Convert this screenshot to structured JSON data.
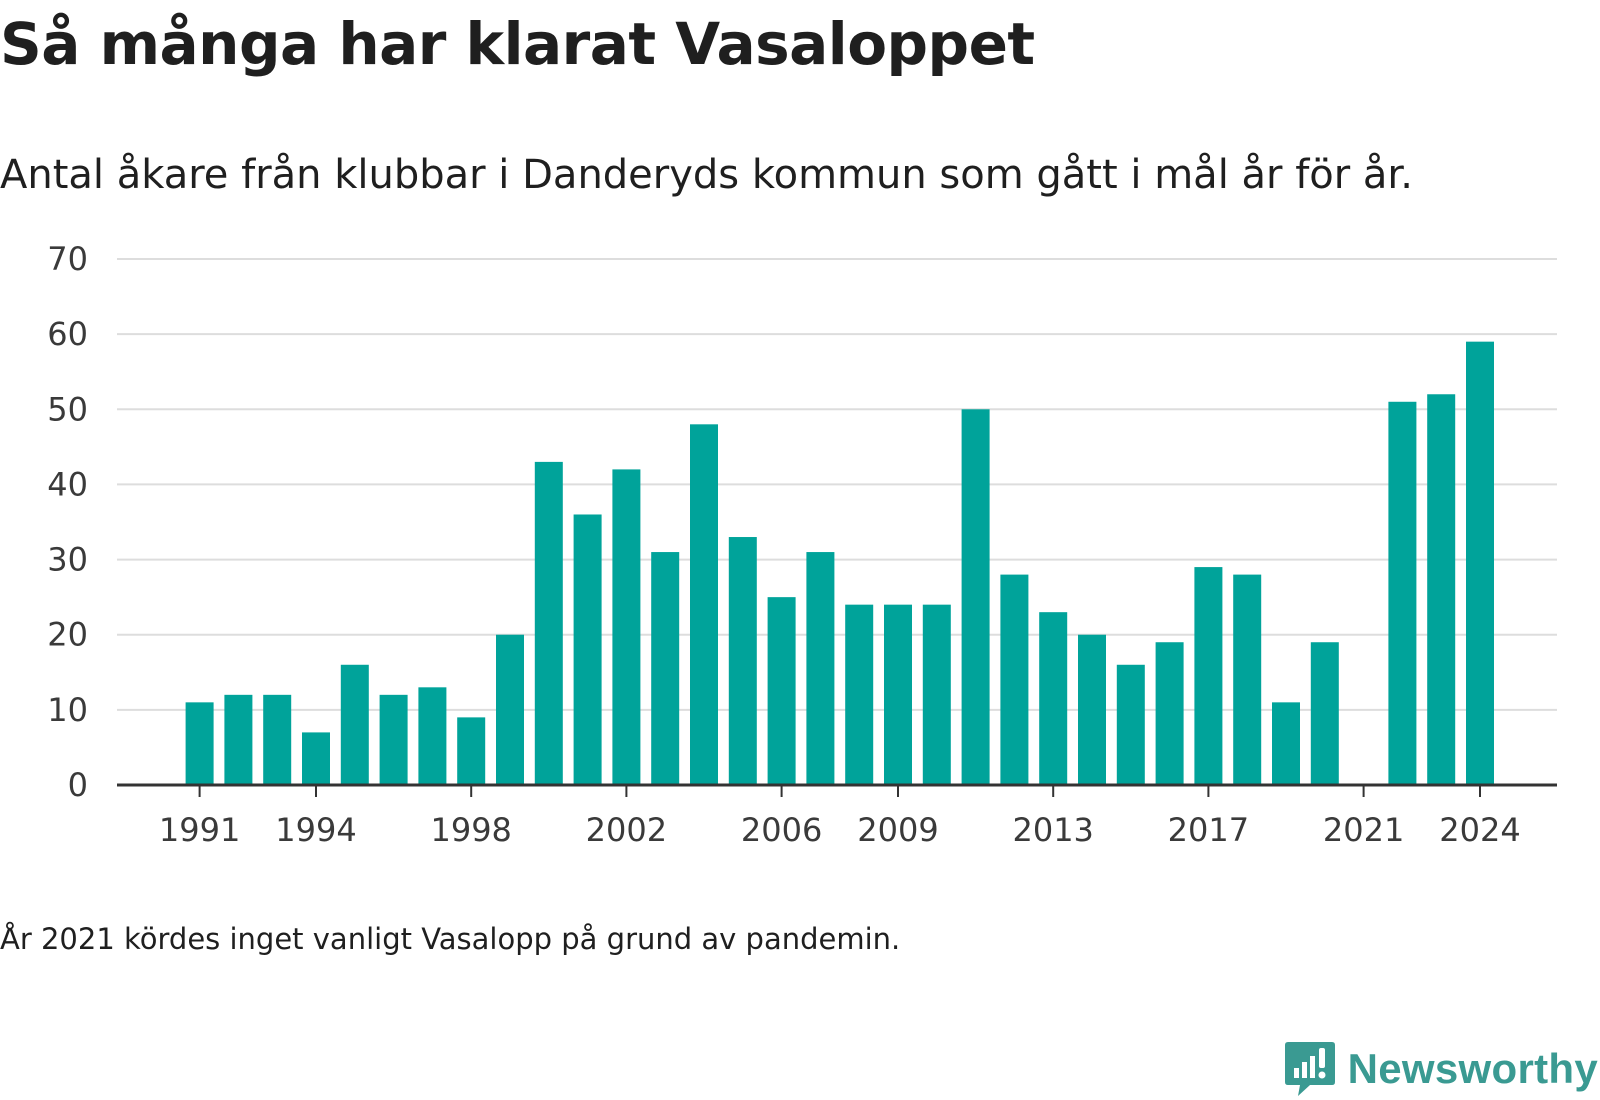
{
  "title": "Så många har klarat Vasaloppet",
  "subtitle": "Antal åkare från klubbar i Danderyds kommun som gått i mål år för år.",
  "note": "År 2021 kördes inget vanligt Vasalopp på grund av pandemin.",
  "brand": {
    "name": "Newsworthy",
    "icon": "newsworthy-logo-icon"
  },
  "colors": {
    "bar": "#00a39a",
    "grid": "#dddddd",
    "axis": "#333333",
    "brand": "#3a9a92"
  },
  "chart_data": {
    "type": "bar",
    "x": [
      1991,
      1992,
      1993,
      1994,
      1995,
      1996,
      1997,
      1998,
      1999,
      2000,
      2001,
      2002,
      2003,
      2004,
      2005,
      2006,
      2007,
      2008,
      2009,
      2010,
      2011,
      2012,
      2013,
      2014,
      2015,
      2016,
      2017,
      2018,
      2019,
      2020,
      2021,
      2022,
      2023,
      2024
    ],
    "values": [
      11,
      12,
      12,
      7,
      16,
      12,
      13,
      9,
      20,
      43,
      36,
      42,
      31,
      48,
      33,
      25,
      31,
      24,
      24,
      24,
      50,
      28,
      23,
      20,
      16,
      19,
      29,
      28,
      11,
      19,
      0,
      51,
      52,
      59
    ],
    "x_tick_labels": [
      "1991",
      "1994",
      "1998",
      "2002",
      "2006",
      "2009",
      "2013",
      "2017",
      "2021",
      "2024"
    ],
    "y_ticks": [
      0,
      10,
      20,
      30,
      40,
      50,
      60,
      70
    ],
    "ylim": [
      0,
      70
    ],
    "grid": true,
    "legend": "none"
  }
}
